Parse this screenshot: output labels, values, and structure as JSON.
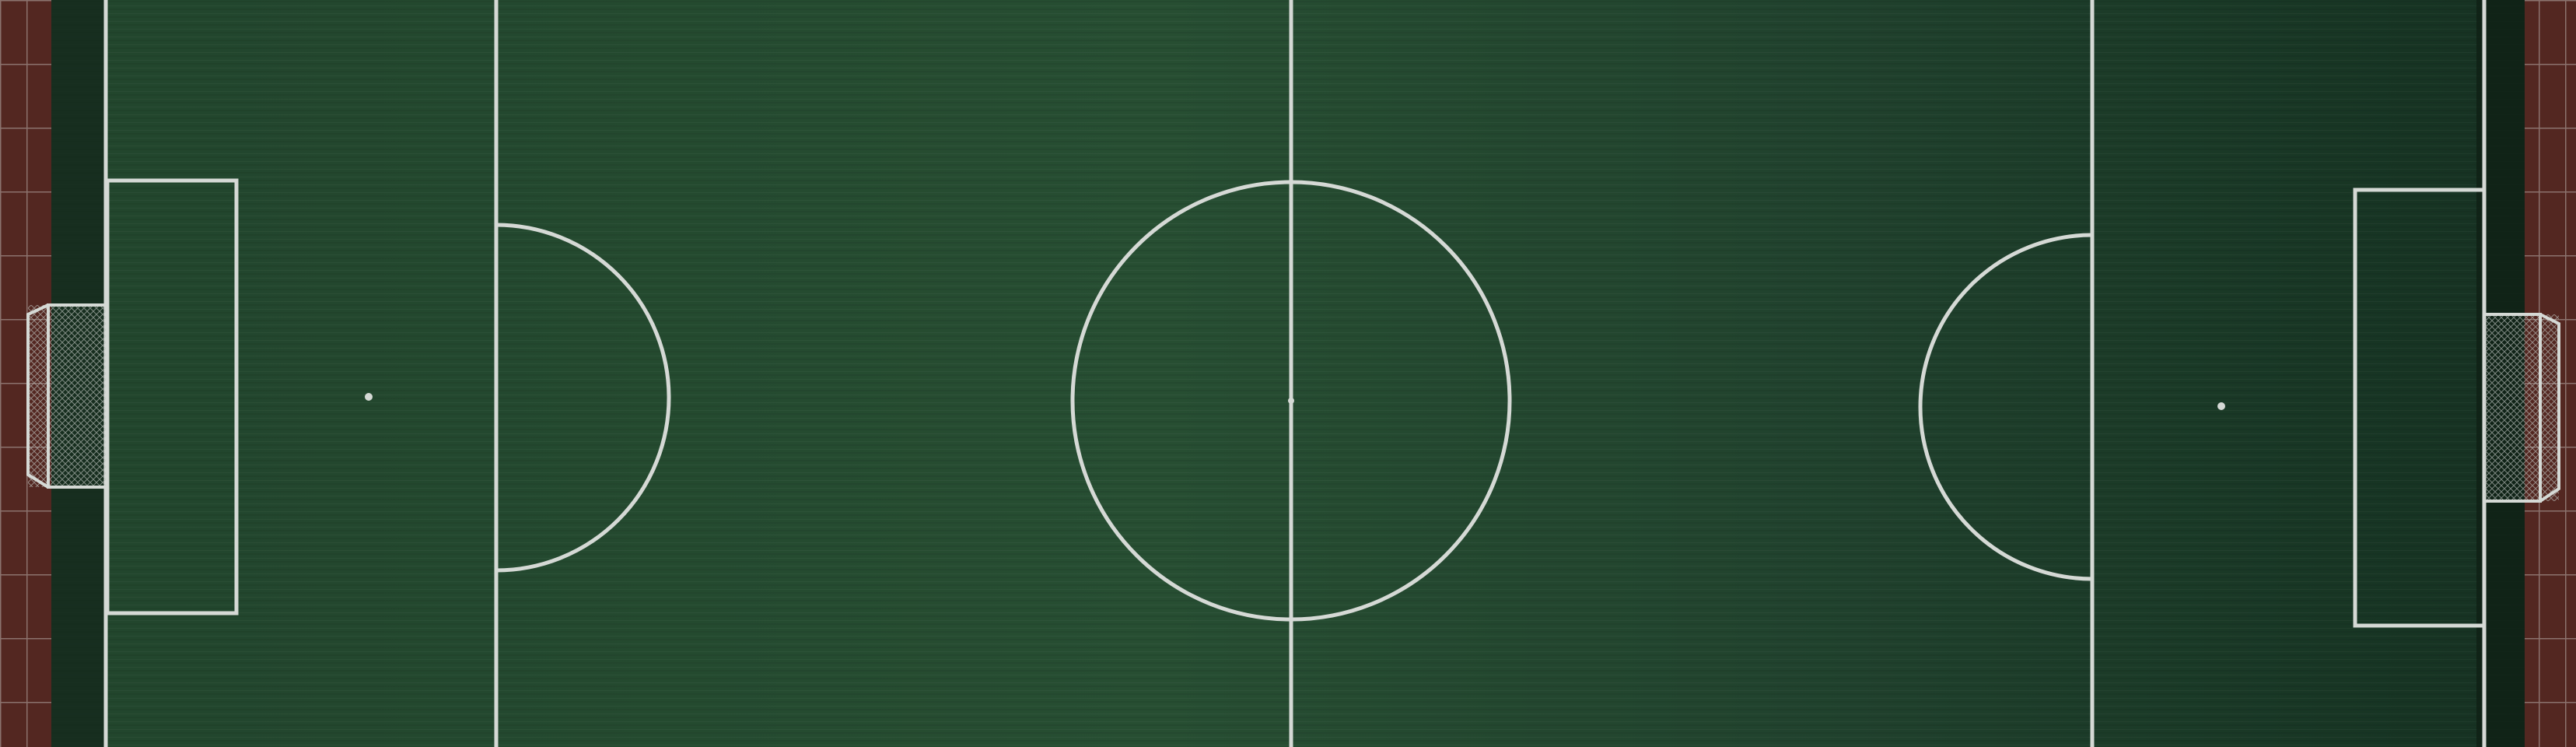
{
  "scene": {
    "subject": "football-pitch-aerial-view",
    "colors": {
      "grass_light": "#2f5a3a",
      "grass_mid": "#244b30",
      "grass_dark": "#1b3a25",
      "grass_right_shadow": "#162f1f",
      "line": "#e8ece8",
      "track": "#5b2b24",
      "track_grid": "#b7a8a2"
    }
  }
}
